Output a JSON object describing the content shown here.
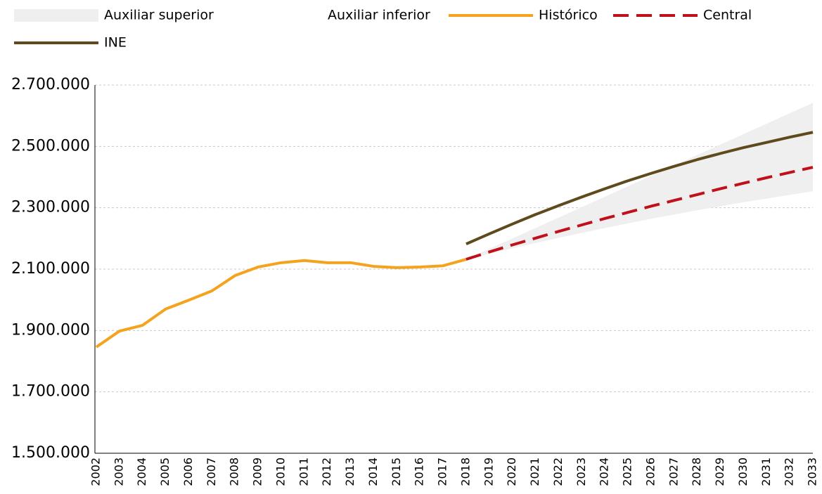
{
  "chart_data": {
    "type": "line",
    "categories": [
      "2002",
      "2003",
      "2004",
      "2005",
      "2006",
      "2007",
      "2008",
      "2009",
      "2010",
      "2011",
      "2012",
      "2013",
      "2014",
      "2015",
      "2016",
      "2017",
      "2018",
      "2019",
      "2020",
      "2021",
      "2022",
      "2023",
      "2024",
      "2025",
      "2026",
      "2027",
      "2028",
      "2029",
      "2030",
      "2031",
      "2032",
      "2033"
    ],
    "series": [
      {
        "name": "Auxiliar superior",
        "color": "#efefef",
        "stacked": true,
        "area": true,
        "values": [
          null,
          null,
          null,
          null,
          null,
          null,
          null,
          null,
          null,
          null,
          null,
          null,
          null,
          null,
          null,
          null,
          0,
          16000,
          32000,
          49000,
          66000,
          84000,
          102000,
          121000,
          140000,
          160000,
          180000,
          201000,
          222000,
          244000,
          266000,
          288000
        ]
      },
      {
        "name": "Auxiliar inferior",
        "color": "none",
        "area": true,
        "values": [
          null,
          null,
          null,
          null,
          null,
          null,
          null,
          null,
          null,
          null,
          null,
          null,
          null,
          null,
          null,
          null,
          2132000,
          2150000,
          2168000,
          2185000,
          2202000,
          2218000,
          2234000,
          2249000,
          2264000,
          2278000,
          2292000,
          2305000,
          2318000,
          2330000,
          2342000,
          2354000
        ]
      },
      {
        "name": "Histórico",
        "color": "#f4a31e",
        "values": [
          1846000,
          1898000,
          1917000,
          1970000,
          1999000,
          2029000,
          2079000,
          2107000,
          2121000,
          2128000,
          2121000,
          2121000,
          2109000,
          2105000,
          2107000,
          2111000,
          2132000,
          null,
          null,
          null,
          null,
          null,
          null,
          null,
          null,
          null,
          null,
          null,
          null,
          null,
          null,
          null
        ]
      },
      {
        "name": "Central",
        "color": "#c0101a",
        "dashed": true,
        "values": [
          null,
          null,
          null,
          null,
          null,
          null,
          null,
          null,
          null,
          null,
          null,
          null,
          null,
          null,
          null,
          null,
          2132000,
          2156000,
          2179000,
          2201000,
          2223000,
          2244000,
          2265000,
          2285000,
          2305000,
          2324000,
          2343000,
          2362000,
          2380000,
          2398000,
          2415000,
          2432000
        ]
      },
      {
        "name": "INE",
        "color": "#5e4a1c",
        "values": [
          null,
          null,
          null,
          null,
          null,
          null,
          null,
          null,
          null,
          null,
          null,
          null,
          null,
          null,
          null,
          null,
          2182000,
          2215000,
          2247000,
          2278000,
          2307000,
          2335000,
          2362000,
          2388000,
          2412000,
          2435000,
          2457000,
          2477000,
          2496000,
          2513000,
          2530000,
          2546000
        ]
      }
    ],
    "ylim": [
      1500000,
      2700000
    ],
    "yticks": [
      {
        "value": 1500000,
        "label": "1.500.000"
      },
      {
        "value": 1700000,
        "label": "1.700.000"
      },
      {
        "value": 1900000,
        "label": "1.900.000"
      },
      {
        "value": 2100000,
        "label": "2.100.000"
      },
      {
        "value": 2300000,
        "label": "2.300.000"
      },
      {
        "value": 2500000,
        "label": "2.500.000"
      },
      {
        "value": 2700000,
        "label": "2.700.000"
      }
    ],
    "grid": true,
    "legend": "top"
  }
}
